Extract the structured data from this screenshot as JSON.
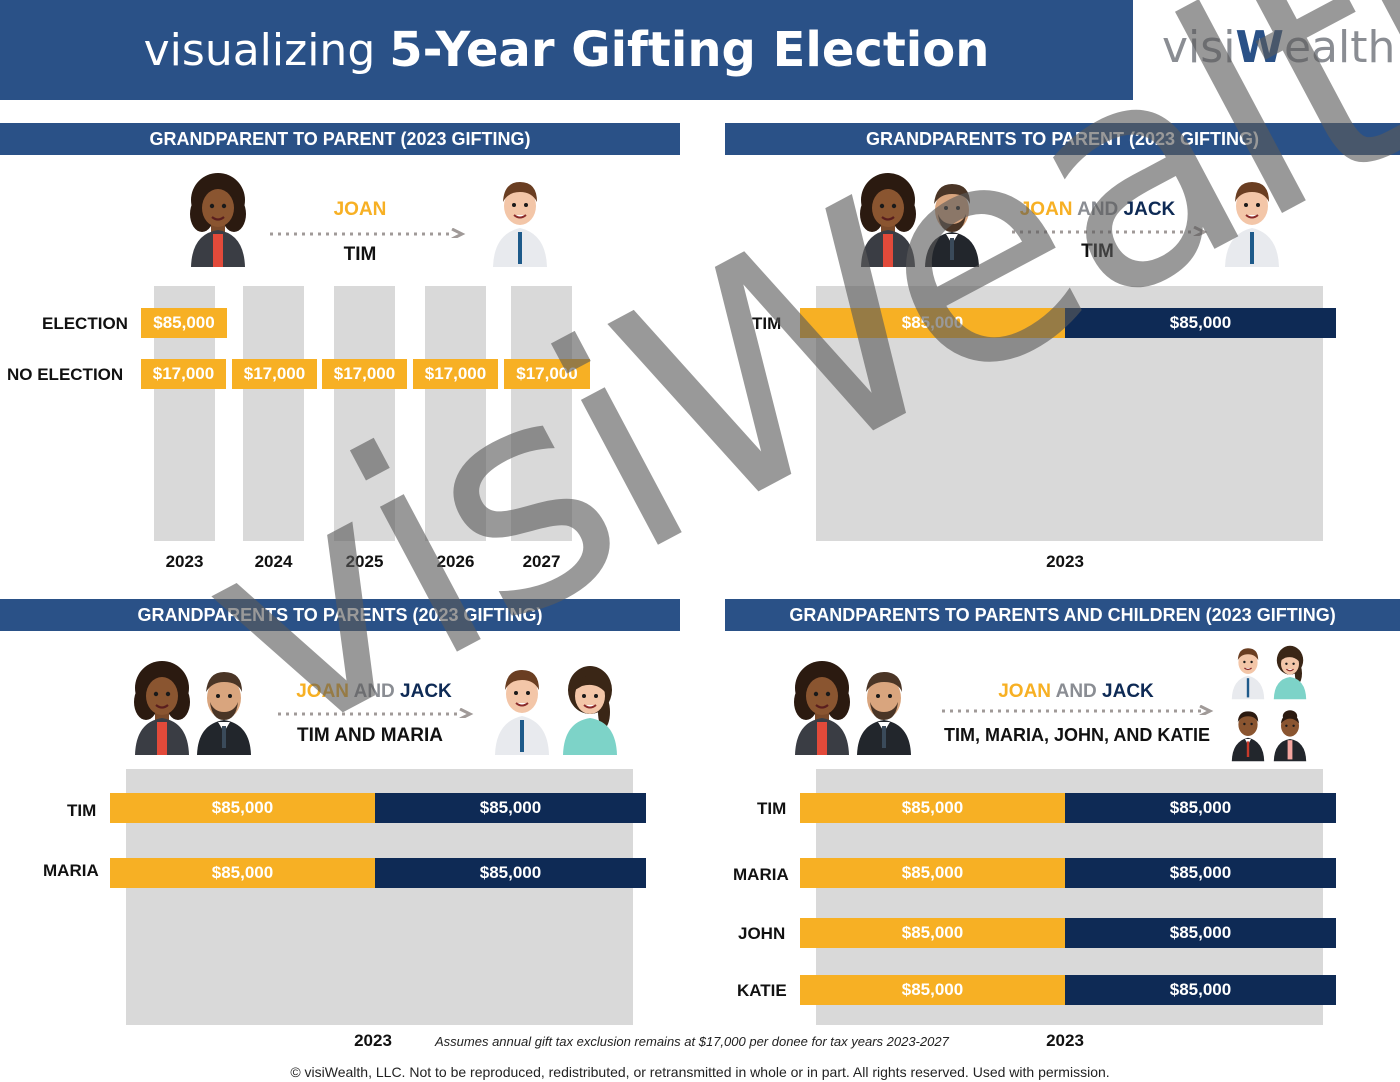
{
  "title": {
    "light": "visualizing",
    "bold": "5-Year Gifting Election"
  },
  "logo": {
    "part1": "visi",
    "part2": "W",
    "part3": "ealth"
  },
  "colors": {
    "header": "#2a5187",
    "gold": "#f7b024",
    "navy": "#0e2a55",
    "gray": "#d9d9d9"
  },
  "panel1": {
    "heading": "GRANDPARENT TO PARENT (2023 GIFTING)",
    "giver": "JOAN",
    "recipient": "TIM",
    "rows": [
      "ELECTION",
      "NO ELECTION"
    ],
    "election_amount": "$85,000",
    "no_election_amounts": [
      "$17,000",
      "$17,000",
      "$17,000",
      "$17,000",
      "$17,000"
    ],
    "years": [
      "2023",
      "2024",
      "2025",
      "2026",
      "2027"
    ]
  },
  "panel2": {
    "heading": "GRANDPARENTS TO PARENT (2023 GIFTING)",
    "giver_joan": "JOAN",
    "giver_and": "AND",
    "giver_jack": "JACK",
    "recipient": "TIM",
    "rows": [
      {
        "name": "TIM",
        "joan": "$85,000",
        "jack": "$85,000"
      }
    ],
    "year": "2023"
  },
  "panel3": {
    "heading": "GRANDPARENTS TO PARENTS (2023 GIFTING)",
    "giver_joan": "JOAN",
    "giver_and": "AND",
    "giver_jack": "JACK",
    "recipient": "TIM AND MARIA",
    "rows": [
      {
        "name": "TIM",
        "joan": "$85,000",
        "jack": "$85,000"
      },
      {
        "name": "MARIA",
        "joan": "$85,000",
        "jack": "$85,000"
      }
    ],
    "year": "2023"
  },
  "panel4": {
    "heading": "GRANDPARENTS TO PARENTS AND CHILDREN (2023 GIFTING)",
    "giver_joan": "JOAN",
    "giver_and": "AND",
    "giver_jack": "JACK",
    "recipient": "TIM, MARIA, JOHN, AND KATIE",
    "rows": [
      {
        "name": "TIM",
        "joan": "$85,000",
        "jack": "$85,000"
      },
      {
        "name": "MARIA",
        "joan": "$85,000",
        "jack": "$85,000"
      },
      {
        "name": "JOHN",
        "joan": "$85,000",
        "jack": "$85,000"
      },
      {
        "name": "KATIE",
        "joan": "$85,000",
        "jack": "$85,000"
      }
    ],
    "year": "2023"
  },
  "footnote": "Assumes annual gift tax exclusion remains at $17,000 per donee for tax years 2023-2027",
  "copyright": "© visiWealth, LLC. Not to be reproduced, redistributed, or retransmitted in whole or in part. All rights reserved. Used with permission.",
  "watermark": "visiWealth"
}
